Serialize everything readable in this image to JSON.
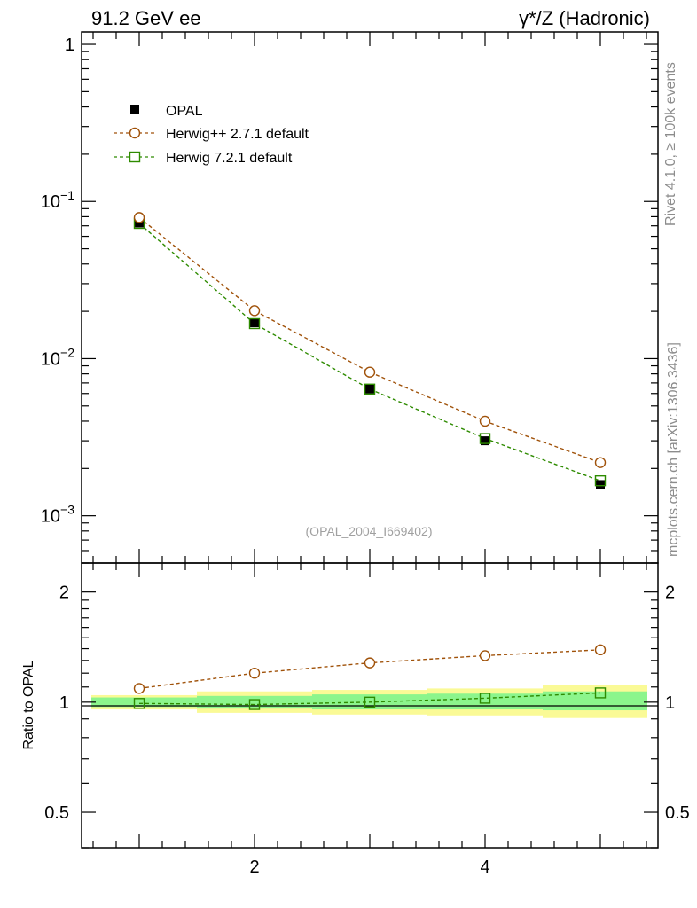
{
  "header": {
    "left_title": "91.2 GeV ee",
    "right_title": "γ*/Z (Hadronic)"
  },
  "side": {
    "rivet": "Rivet 4.1.0, ≥ 100k events",
    "mcplots": "mcplots.cern.ch [arXiv:1306.3436]"
  },
  "watermark": "(OPAL_2004_I669402)",
  "legend": [
    {
      "label": "OPAL",
      "marker": "filled-square",
      "color": "#000000"
    },
    {
      "label": "Herwig++ 2.7.1 default",
      "marker": "open-circle",
      "color": "#a0520a"
    },
    {
      "label": "Herwig 7.2.1 default",
      "marker": "open-square",
      "color": "#2e8b00"
    }
  ],
  "colors": {
    "opal": "#000000",
    "herwigpp": "#a0520a",
    "herwig7": "#2e8b00",
    "band_inner": "#8cf58c",
    "band_outer": "#fafa96"
  },
  "chart_data": [
    {
      "type": "line",
      "panel": "main",
      "yscale": "log",
      "xlim": [
        0.5,
        5.5
      ],
      "ylim": [
        0.0005,
        1.2
      ],
      "y_tick_labels": [
        {
          "value": 1,
          "label": "1"
        },
        {
          "value": 0.1,
          "base": "10",
          "exp": "−1"
        },
        {
          "value": 0.01,
          "base": "10",
          "exp": "−2"
        },
        {
          "value": 0.001,
          "base": "10",
          "exp": "−3"
        }
      ],
      "x": [
        1,
        2,
        3,
        4,
        5
      ],
      "series": [
        {
          "name": "OPAL",
          "values": [
            0.073,
            0.0169,
            0.0064,
            0.003,
            0.00158
          ]
        },
        {
          "name": "Herwig++ 2.7.1 default",
          "values": [
            0.079,
            0.0202,
            0.0082,
            0.004,
            0.00218
          ]
        },
        {
          "name": "Herwig 7.2.1 default",
          "values": [
            0.0725,
            0.0167,
            0.0064,
            0.0031,
            0.00167
          ]
        }
      ],
      "grid": false
    },
    {
      "type": "line",
      "panel": "ratio",
      "ylabel": "Ratio to OPAL",
      "yscale": "log",
      "xlim": [
        0.5,
        5.5
      ],
      "ylim": [
        0.4,
        2.4
      ],
      "y_tick_labels": [
        {
          "value": 0.5,
          "label": "0.5"
        },
        {
          "value": 1,
          "label": "1"
        },
        {
          "value": 2,
          "label": "2"
        }
      ],
      "x_tick_labels": [
        {
          "value": 2,
          "label": "2"
        },
        {
          "value": 4,
          "label": "4"
        }
      ],
      "x": [
        1,
        2,
        3,
        4,
        5
      ],
      "bins": [
        [
          0.5,
          1.5
        ],
        [
          1.5,
          2.5
        ],
        [
          2.5,
          3.5
        ],
        [
          3.5,
          4.5
        ],
        [
          4.5,
          5.5
        ]
      ],
      "band_inner": [
        [
          0.97,
          1.03
        ],
        [
          0.96,
          1.04
        ],
        [
          0.955,
          1.05
        ],
        [
          0.955,
          1.055
        ],
        [
          0.95,
          1.07
        ]
      ],
      "band_outer": [
        [
          0.955,
          1.045
        ],
        [
          0.935,
          1.07
        ],
        [
          0.925,
          1.08
        ],
        [
          0.92,
          1.09
        ],
        [
          0.905,
          1.115
        ]
      ],
      "series": [
        {
          "name": "Herwig++ 2.7.1 default",
          "values": [
            1.09,
            1.2,
            1.28,
            1.34,
            1.39
          ]
        },
        {
          "name": "Herwig 7.2.1 default",
          "values": [
            0.992,
            0.985,
            1.0,
            1.025,
            1.06
          ]
        }
      ],
      "grid": false
    }
  ]
}
